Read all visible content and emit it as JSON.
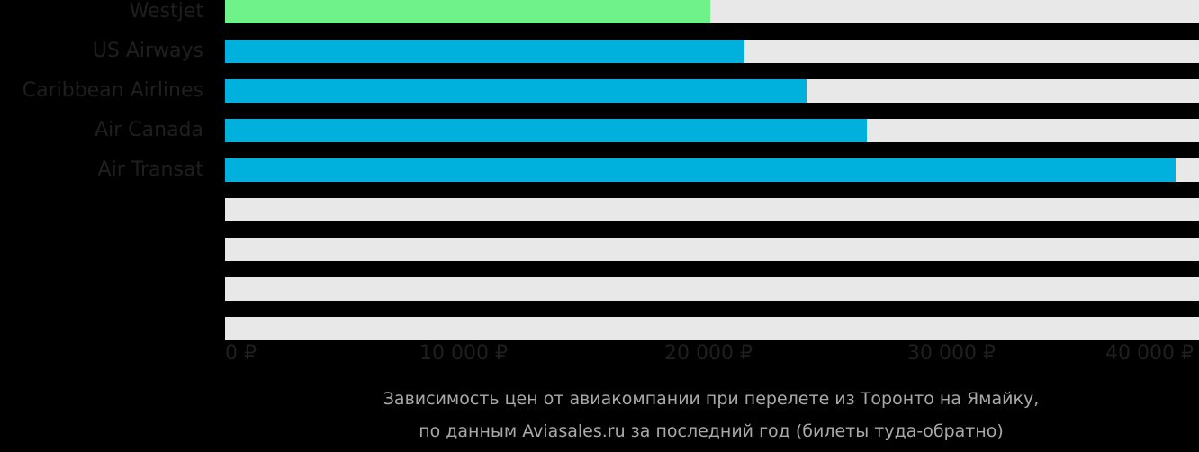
{
  "chart_data": {
    "type": "bar",
    "orientation": "horizontal",
    "title": "Зависимость цен от авиакомпании при перелете из Торонто на Ямайку, по данным Aviasales.ru за последний год (билеты туда-обратно)",
    "categories": [
      "Westjet",
      "US Airways",
      "Caribbean Airlines",
      "Air Canada",
      "Air Transat",
      "",
      "",
      "",
      ""
    ],
    "values": [
      19960,
      21370,
      23930,
      26410,
      39110,
      null,
      null,
      null,
      null
    ],
    "colors": [
      "#6ff28a",
      "#00b0dd",
      "#00b0dd",
      "#00b0dd",
      "#00b0dd"
    ],
    "xlabel": "",
    "ylabel": "",
    "xlim": [
      0,
      40000
    ],
    "x_tick_labels": [
      "0 ₽",
      "10 000 ₽",
      "20 000 ₽",
      "30 000 ₽",
      "40 000 ₽"
    ],
    "grid": false,
    "legend": "none"
  },
  "rows": [
    {
      "label": "Westjet",
      "pct": 49.8,
      "color": "#6ff28a"
    },
    {
      "label": "US Airways",
      "pct": 53.3,
      "color": "#00b0dd"
    },
    {
      "label": "Caribbean Airlines",
      "pct": 59.7,
      "color": "#00b0dd"
    },
    {
      "label": "Air Canada",
      "pct": 65.9,
      "color": "#00b0dd"
    },
    {
      "label": "Air Transat",
      "pct": 97.6,
      "color": "#00b0dd"
    },
    {
      "label": "",
      "pct": 0,
      "color": "#00b0dd"
    },
    {
      "label": "",
      "pct": 0,
      "color": "#00b0dd"
    },
    {
      "label": "",
      "pct": 0,
      "color": "#00b0dd"
    },
    {
      "label": "",
      "pct": 0,
      "color": "#00b0dd"
    }
  ],
  "axis": {
    "ticks": [
      "0 ₽",
      "10 000 ₽",
      "20 000 ₽",
      "30 000 ₽",
      "40 000 ₽"
    ]
  },
  "caption": {
    "line1": "Зависимость цен от авиакомпании при перелете из Торонто на Ямайку,",
    "line2": "по данным Aviasales.ru за последний год (билеты туда-обратно)"
  }
}
